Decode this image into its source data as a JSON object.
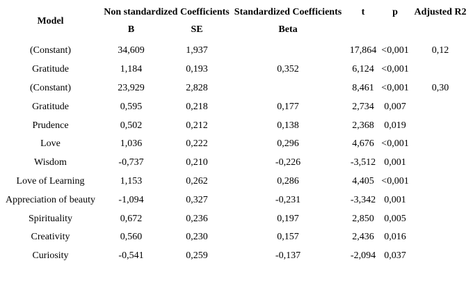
{
  "colors": {
    "text": "#000000",
    "background": "#ffffff"
  },
  "table": {
    "headers": {
      "model": "Model",
      "group_nonstd": "Non standardized Coefficients",
      "group_std": "Standardized Coefficients",
      "b": "B",
      "se": "SE",
      "beta": "Beta",
      "t": "t",
      "p": "p",
      "adj_r2": "Adjusted R2"
    },
    "rows": [
      {
        "model": "(Constant)",
        "b": "34,609",
        "se": "1,937",
        "beta": "",
        "t": "17,864",
        "p": "<0,001",
        "adj_r2": "0,12"
      },
      {
        "model": "Gratitude",
        "b": "1,184",
        "se": "0,193",
        "beta": "0,352",
        "t": "6,124",
        "p": "<0,001",
        "adj_r2": ""
      },
      {
        "model": "(Constant)",
        "b": "23,929",
        "se": "2,828",
        "beta": "",
        "t": "8,461",
        "p": "<0,001",
        "adj_r2": "0,30"
      },
      {
        "model": "Gratitude",
        "b": "0,595",
        "se": "0,218",
        "beta": "0,177",
        "t": "2,734",
        "p": "0,007",
        "adj_r2": ""
      },
      {
        "model": "Prudence",
        "b": "0,502",
        "se": "0,212",
        "beta": "0,138",
        "t": "2,368",
        "p": "0,019",
        "adj_r2": ""
      },
      {
        "model": "Love",
        "b": "1,036",
        "se": "0,222",
        "beta": "0,296",
        "t": "4,676",
        "p": "<0,001",
        "adj_r2": ""
      },
      {
        "model": "Wisdom",
        "b": "-0,737",
        "se": "0,210",
        "beta": "-0,226",
        "t": "-3,512",
        "p": "0,001",
        "adj_r2": ""
      },
      {
        "model": "Love of Learning",
        "b": "1,153",
        "se": "0,262",
        "beta": "0,286",
        "t": "4,405",
        "p": "<0,001",
        "adj_r2": ""
      },
      {
        "model": "Appreciation of beauty",
        "b": "-1,094",
        "se": "0,327",
        "beta": "-0,231",
        "t": "-3,342",
        "p": "0,001",
        "adj_r2": ""
      },
      {
        "model": "Spirituality",
        "b": "0,672",
        "se": "0,236",
        "beta": "0,197",
        "t": "2,850",
        "p": "0,005",
        "adj_r2": ""
      },
      {
        "model": "Creativity",
        "b": "0,560",
        "se": "0,230",
        "beta": "0,157",
        "t": "2,436",
        "p": "0,016",
        "adj_r2": ""
      },
      {
        "model": "Curiosity",
        "b": "-0,541",
        "se": "0,259",
        "beta": "-0,137",
        "t": "-2,094",
        "p": "0,037",
        "adj_r2": ""
      }
    ]
  }
}
